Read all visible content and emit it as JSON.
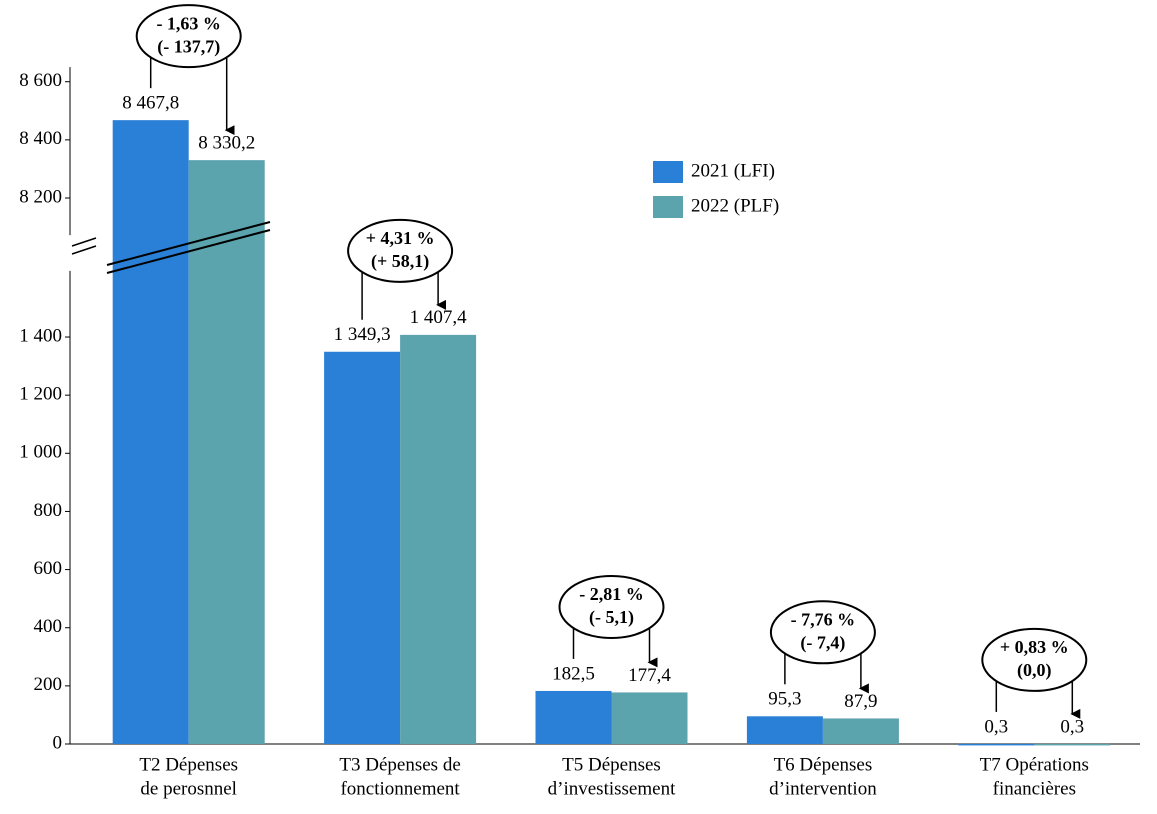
{
  "chart_data": {
    "type": "bar",
    "categories": [
      [
        "T2 Dépenses",
        "de perosnnel"
      ],
      [
        "T3 Dépenses de",
        "fonctionnement"
      ],
      [
        "T5 Dépenses",
        "d’investissement"
      ],
      [
        "T6 Dépenses",
        "d’intervention"
      ],
      [
        "T7 Opérations",
        "financières"
      ]
    ],
    "series": [
      {
        "name": "2021 (LFI)",
        "color": "#2a7fd6",
        "values": [
          8467.8,
          1349.3,
          182.5,
          95.3,
          0.3
        ],
        "value_labels": [
          "8 467,8",
          "1 349,3",
          "182,5",
          "95,3",
          "0,3"
        ]
      },
      {
        "name": "2022 (PLF)",
        "color": "#5ba3ad",
        "values": [
          8330.2,
          1407.4,
          177.4,
          87.9,
          0.3
        ],
        "value_labels": [
          "8 330,2",
          "1 407,4",
          "177,4",
          "87,9",
          "0,3"
        ]
      }
    ],
    "annotations": [
      [
        "- 1,63 %",
        "(- 137,7)"
      ],
      [
        "+ 4,31 %",
        "(+ 58,1)"
      ],
      [
        "- 2,81 %",
        "(- 5,1)"
      ],
      [
        "- 7,76 %",
        "(- 7,4)"
      ],
      [
        "+ 0,83 %",
        "(0,0)"
      ]
    ],
    "ylim": [
      0,
      8650
    ],
    "y_break": [
      1600,
      8100
    ],
    "yticks": [
      0,
      200,
      400,
      600,
      800,
      {
        "value": 1000,
        "label": "1 000"
      },
      {
        "value": 1200,
        "label": "1 200"
      },
      {
        "value": 1400,
        "label": "1 400"
      },
      {
        "value": 8200,
        "label": "8 200"
      },
      {
        "value": 8400,
        "label": "8 400"
      },
      {
        "value": 8600,
        "label": "8 600"
      }
    ],
    "legend": "upper right"
  }
}
